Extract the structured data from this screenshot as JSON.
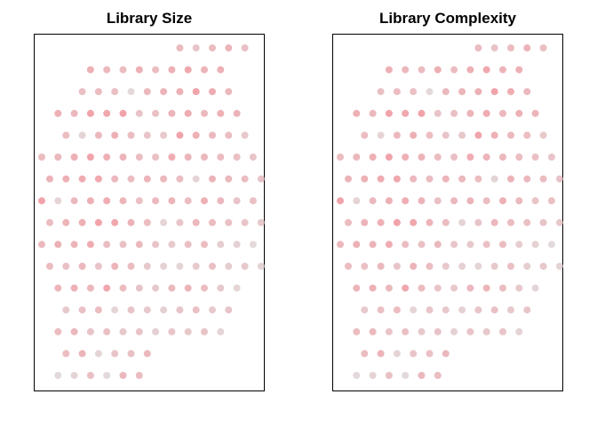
{
  "chart_data": [
    {
      "type": "scatter",
      "title": "Library Size",
      "xlabel": "",
      "ylabel": "",
      "grid": false,
      "axes_ticks": false,
      "rows": [
        {
          "y": 16,
          "x": [
            8,
            9,
            10,
            11,
            12
          ],
          "level": [
            0.45,
            0.35,
            0.45,
            0.55,
            0.4
          ]
        },
        {
          "y": 15,
          "x": [
            3,
            4,
            5,
            6,
            7,
            8,
            9,
            10,
            11
          ],
          "level": [
            0.6,
            0.5,
            0.45,
            0.6,
            0.45,
            0.6,
            0.7,
            0.55,
            0.6
          ]
        },
        {
          "y": 14,
          "x": [
            2,
            3,
            4,
            5,
            6,
            7,
            8,
            9,
            10,
            11
          ],
          "level": [
            0.4,
            0.45,
            0.4,
            0.1,
            0.5,
            0.55,
            0.6,
            0.75,
            0.65,
            0.5
          ]
        },
        {
          "y": 13,
          "x": [
            1,
            2,
            3,
            4,
            5,
            6,
            7,
            8,
            9,
            10,
            11,
            12
          ],
          "level": [
            0.6,
            0.5,
            0.75,
            0.7,
            0.75,
            0.35,
            0.4,
            0.55,
            0.65,
            0.5,
            0.6,
            0.55
          ]
        },
        {
          "y": 12,
          "x": [
            1,
            2,
            3,
            4,
            5,
            6,
            7,
            8,
            9,
            10,
            11,
            12
          ],
          "level": [
            0.45,
            0.15,
            0.5,
            0.6,
            0.45,
            0.35,
            0.3,
            0.75,
            0.6,
            0.5,
            0.45,
            0.3
          ]
        },
        {
          "y": 11,
          "x": [
            0,
            1,
            2,
            3,
            4,
            5,
            6,
            7,
            8,
            9,
            10,
            11,
            12,
            13
          ],
          "level": [
            0.45,
            0.5,
            0.6,
            0.75,
            0.6,
            0.55,
            0.45,
            0.4,
            0.65,
            0.55,
            0.5,
            0.45,
            0.4,
            0.35
          ]
        },
        {
          "y": 10,
          "x": [
            0,
            1,
            2,
            3,
            4,
            5,
            6,
            7,
            8,
            9,
            10,
            11,
            12,
            13
          ],
          "level": [
            0.55,
            0.6,
            0.65,
            0.7,
            0.5,
            0.45,
            0.55,
            0.5,
            0.45,
            0.15,
            0.55,
            0.5,
            0.45,
            0.35
          ]
        },
        {
          "y": 9,
          "x": [
            0,
            1,
            2,
            3,
            4,
            5,
            6,
            7,
            8,
            9,
            10,
            11,
            12,
            13
          ],
          "level": [
            0.75,
            0.15,
            0.5,
            0.6,
            0.65,
            0.55,
            0.4,
            0.5,
            0.55,
            0.45,
            0.6,
            0.5,
            0.35,
            0.4
          ]
        },
        {
          "y": 8,
          "x": [
            0,
            1,
            2,
            3,
            4,
            5,
            6,
            7,
            8,
            9,
            10,
            11,
            12,
            13
          ],
          "level": [
            0.45,
            0.55,
            0.6,
            0.75,
            0.7,
            0.55,
            0.45,
            0.15,
            0.35,
            0.5,
            0.45,
            0.4,
            0.35,
            0.3
          ]
        },
        {
          "y": 7,
          "x": [
            0,
            1,
            2,
            3,
            4,
            5,
            6,
            7,
            8,
            9,
            10,
            11,
            12,
            13
          ],
          "level": [
            0.5,
            0.6,
            0.55,
            0.65,
            0.45,
            0.4,
            0.5,
            0.35,
            0.3,
            0.4,
            0.45,
            0.25,
            0.2,
            0.1
          ]
        },
        {
          "y": 6,
          "x": [
            0,
            1,
            2,
            3,
            4,
            5,
            6,
            7,
            8,
            9,
            10,
            11,
            12,
            13
          ],
          "level": [
            0.45,
            0.4,
            0.5,
            0.35,
            0.55,
            0.45,
            0.3,
            0.2,
            0.15,
            0.3,
            0.4,
            0.25,
            0.3,
            0.15
          ]
        },
        {
          "y": 5,
          "x": [
            1,
            2,
            3,
            4,
            5,
            6,
            7,
            8,
            9,
            10,
            11,
            12
          ],
          "level": [
            0.55,
            0.6,
            0.5,
            0.7,
            0.45,
            0.35,
            0.3,
            0.5,
            0.55,
            0.45,
            0.3,
            0.15
          ]
        },
        {
          "y": 4,
          "x": [
            1,
            2,
            3,
            4,
            5,
            6,
            7,
            8,
            9,
            10,
            11
          ],
          "level": [
            0.3,
            0.4,
            0.45,
            0.15,
            0.35,
            0.3,
            0.2,
            0.35,
            0.4,
            0.3,
            0.35
          ]
        },
        {
          "y": 3,
          "x": [
            1,
            2,
            3,
            4,
            5,
            6,
            7,
            8,
            9,
            10,
            11
          ],
          "level": [
            0.45,
            0.5,
            0.35,
            0.4,
            0.3,
            0.35,
            0.2,
            0.35,
            0.3,
            0.35,
            0.15
          ]
        },
        {
          "y": 2,
          "x": [
            1,
            2,
            3,
            4,
            5,
            6
          ],
          "level": [
            0.45,
            0.55,
            0.15,
            0.35,
            0.4,
            0.5
          ]
        },
        {
          "y": 1,
          "x": [
            1,
            2,
            3,
            4,
            5,
            6
          ],
          "level": [
            0.1,
            0.15,
            0.4,
            0.1,
            0.5,
            0.45
          ]
        }
      ]
    },
    {
      "type": "scatter",
      "title": "Library Complexity",
      "xlabel": "",
      "ylabel": "",
      "grid": false,
      "axes_ticks": false,
      "rows": [
        {
          "y": 16,
          "x": [
            8,
            9,
            10,
            11,
            12
          ],
          "level": [
            0.45,
            0.35,
            0.45,
            0.55,
            0.4
          ]
        },
        {
          "y": 15,
          "x": [
            3,
            4,
            5,
            6,
            7,
            8,
            9,
            10,
            11
          ],
          "level": [
            0.6,
            0.5,
            0.45,
            0.6,
            0.45,
            0.6,
            0.7,
            0.55,
            0.6
          ]
        },
        {
          "y": 14,
          "x": [
            2,
            3,
            4,
            5,
            6,
            7,
            8,
            9,
            10,
            11
          ],
          "level": [
            0.4,
            0.45,
            0.4,
            0.1,
            0.5,
            0.55,
            0.6,
            0.75,
            0.65,
            0.5
          ]
        },
        {
          "y": 13,
          "x": [
            1,
            2,
            3,
            4,
            5,
            6,
            7,
            8,
            9,
            10,
            11,
            12
          ],
          "level": [
            0.6,
            0.5,
            0.75,
            0.7,
            0.75,
            0.35,
            0.4,
            0.55,
            0.65,
            0.5,
            0.6,
            0.55
          ]
        },
        {
          "y": 12,
          "x": [
            1,
            2,
            3,
            4,
            5,
            6,
            7,
            8,
            9,
            10,
            11,
            12
          ],
          "level": [
            0.45,
            0.15,
            0.5,
            0.6,
            0.45,
            0.35,
            0.3,
            0.75,
            0.6,
            0.5,
            0.45,
            0.3
          ]
        },
        {
          "y": 11,
          "x": [
            0,
            1,
            2,
            3,
            4,
            5,
            6,
            7,
            8,
            9,
            10,
            11,
            12,
            13
          ],
          "level": [
            0.45,
            0.5,
            0.6,
            0.75,
            0.6,
            0.55,
            0.45,
            0.4,
            0.65,
            0.55,
            0.5,
            0.45,
            0.4,
            0.35
          ]
        },
        {
          "y": 10,
          "x": [
            0,
            1,
            2,
            3,
            4,
            5,
            6,
            7,
            8,
            9,
            10,
            11,
            12,
            13
          ],
          "level": [
            0.55,
            0.6,
            0.65,
            0.7,
            0.5,
            0.45,
            0.55,
            0.5,
            0.45,
            0.15,
            0.55,
            0.5,
            0.45,
            0.35
          ]
        },
        {
          "y": 9,
          "x": [
            0,
            1,
            2,
            3,
            4,
            5,
            6,
            7,
            8,
            9,
            10,
            11,
            12,
            13
          ],
          "level": [
            0.75,
            0.15,
            0.5,
            0.6,
            0.65,
            0.55,
            0.4,
            0.5,
            0.55,
            0.45,
            0.6,
            0.5,
            0.35,
            0.4
          ]
        },
        {
          "y": 8,
          "x": [
            0,
            1,
            2,
            3,
            4,
            5,
            6,
            7,
            8,
            9,
            10,
            11,
            12,
            13
          ],
          "level": [
            0.45,
            0.55,
            0.6,
            0.75,
            0.7,
            0.55,
            0.45,
            0.15,
            0.35,
            0.5,
            0.45,
            0.4,
            0.35,
            0.3
          ]
        },
        {
          "y": 7,
          "x": [
            0,
            1,
            2,
            3,
            4,
            5,
            6,
            7,
            8,
            9,
            10,
            11,
            12,
            13
          ],
          "level": [
            0.5,
            0.6,
            0.55,
            0.65,
            0.45,
            0.4,
            0.5,
            0.35,
            0.3,
            0.4,
            0.45,
            0.25,
            0.2,
            0.1
          ]
        },
        {
          "y": 6,
          "x": [
            0,
            1,
            2,
            3,
            4,
            5,
            6,
            7,
            8,
            9,
            10,
            11,
            12,
            13
          ],
          "level": [
            0.45,
            0.4,
            0.5,
            0.35,
            0.55,
            0.45,
            0.3,
            0.2,
            0.15,
            0.3,
            0.4,
            0.25,
            0.3,
            0.15
          ]
        },
        {
          "y": 5,
          "x": [
            1,
            2,
            3,
            4,
            5,
            6,
            7,
            8,
            9,
            10,
            11,
            12
          ],
          "level": [
            0.55,
            0.6,
            0.5,
            0.7,
            0.45,
            0.35,
            0.3,
            0.5,
            0.55,
            0.45,
            0.3,
            0.15
          ]
        },
        {
          "y": 4,
          "x": [
            1,
            2,
            3,
            4,
            5,
            6,
            7,
            8,
            9,
            10,
            11
          ],
          "level": [
            0.3,
            0.4,
            0.45,
            0.15,
            0.35,
            0.3,
            0.2,
            0.35,
            0.4,
            0.3,
            0.35
          ]
        },
        {
          "y": 3,
          "x": [
            1,
            2,
            3,
            4,
            5,
            6,
            7,
            8,
            9,
            10,
            11
          ],
          "level": [
            0.45,
            0.5,
            0.35,
            0.4,
            0.3,
            0.35,
            0.2,
            0.35,
            0.3,
            0.35,
            0.15
          ]
        },
        {
          "y": 2,
          "x": [
            1,
            2,
            3,
            4,
            5,
            6
          ],
          "level": [
            0.45,
            0.55,
            0.15,
            0.35,
            0.4,
            0.5
          ]
        },
        {
          "y": 1,
          "x": [
            1,
            2,
            3,
            4,
            5,
            6
          ],
          "level": [
            0.1,
            0.15,
            0.4,
            0.1,
            0.5,
            0.45
          ]
        }
      ]
    }
  ],
  "colors": {
    "low": "#dcdcdc",
    "high": "#f47b86",
    "frame": "#000000"
  }
}
